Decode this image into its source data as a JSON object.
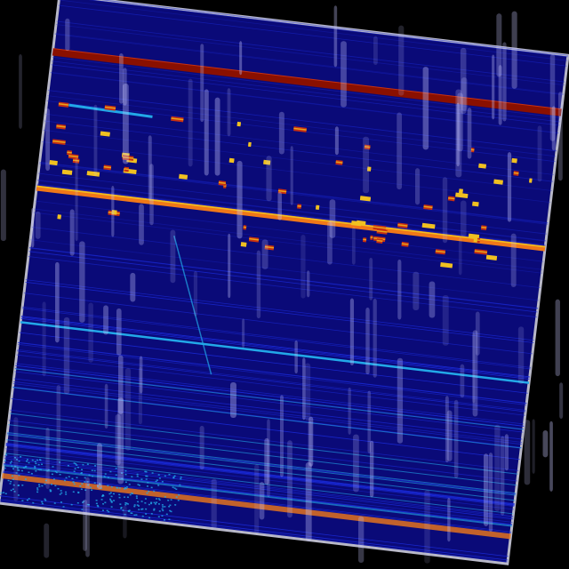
{
  "colors": {
    "background": "#000000",
    "frame": "#b8b8c8",
    "field": "#0a0a78",
    "faint_line": "#1a2ad8",
    "cyan_line": "#22a8e8",
    "red_band": "#8a1000",
    "orange_band": "#f07818",
    "marker_red": "#c83010",
    "marker_yellow": "#f0c020",
    "streak": "#c8c8ff"
  }
}
